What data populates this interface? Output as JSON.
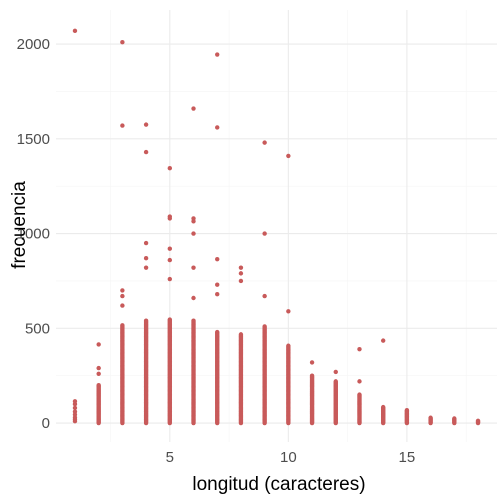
{
  "chart_data": {
    "type": "scatter",
    "title": "",
    "xlabel": "longitud (caracteres)",
    "ylabel": "frecuencia",
    "xlim": [
      0.2,
      18.8
    ],
    "ylim": [
      -100,
      2180
    ],
    "x_ticks": [
      5,
      10,
      15
    ],
    "y_ticks": [
      0,
      500,
      1000,
      1500,
      2000
    ],
    "grid": true,
    "point_color": "#c85a5a",
    "series": [
      {
        "points": [
          [
            1,
            2070
          ],
          [
            3,
            2010
          ],
          [
            3,
            1570
          ],
          [
            4,
            1575
          ],
          [
            4,
            1430
          ],
          [
            5,
            1345
          ],
          [
            5,
            1090
          ],
          [
            5,
            1080
          ],
          [
            6,
            1660
          ],
          [
            6,
            1080
          ],
          [
            6,
            1065
          ],
          [
            6,
            1000
          ],
          [
            7,
            1945
          ],
          [
            7,
            1560
          ],
          [
            7,
            865
          ],
          [
            9,
            1480
          ],
          [
            9,
            1000
          ],
          [
            10,
            1410
          ],
          [
            10,
            590
          ],
          [
            4,
            950
          ],
          [
            4,
            870
          ],
          [
            4,
            820
          ],
          [
            5,
            920
          ],
          [
            5,
            860
          ],
          [
            5,
            760
          ],
          [
            6,
            820
          ],
          [
            6,
            660
          ],
          [
            7,
            730
          ],
          [
            7,
            680
          ],
          [
            8,
            820
          ],
          [
            8,
            790
          ],
          [
            8,
            750
          ],
          [
            9,
            670
          ],
          [
            3,
            700
          ],
          [
            3,
            670
          ],
          [
            3,
            620
          ],
          [
            2,
            415
          ],
          [
            2,
            290
          ],
          [
            2,
            260
          ],
          [
            14,
            435
          ],
          [
            13,
            390
          ],
          [
            11,
            320
          ],
          [
            12,
            270
          ],
          [
            13,
            220
          ],
          [
            1,
            115
          ],
          [
            1,
            100
          ],
          [
            1,
            80
          ],
          [
            1,
            60
          ],
          [
            1,
            45
          ],
          [
            1,
            30
          ],
          [
            1,
            20
          ],
          [
            1,
            10
          ]
        ],
        "columns": [
          {
            "x": 2,
            "top": 200
          },
          {
            "x": 3,
            "top": 520
          },
          {
            "x": 4,
            "top": 545
          },
          {
            "x": 5,
            "top": 550
          },
          {
            "x": 6,
            "top": 540
          },
          {
            "x": 7,
            "top": 480
          },
          {
            "x": 8,
            "top": 470
          },
          {
            "x": 9,
            "top": 510
          },
          {
            "x": 10,
            "top": 410
          },
          {
            "x": 11,
            "top": 250
          },
          {
            "x": 12,
            "top": 220
          },
          {
            "x": 13,
            "top": 150
          },
          {
            "x": 14,
            "top": 85
          },
          {
            "x": 15,
            "top": 70
          },
          {
            "x": 16,
            "top": 30
          },
          {
            "x": 17,
            "top": 25
          },
          {
            "x": 18,
            "top": 15
          }
        ]
      }
    ]
  }
}
